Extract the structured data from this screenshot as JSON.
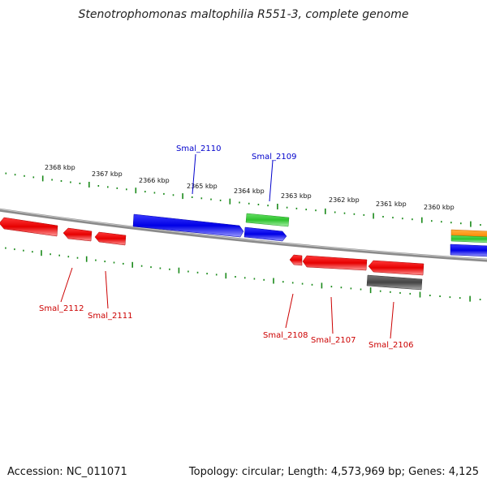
{
  "title": "Stenotrophomonas maltophilia R551-3, complete genome",
  "footer": {
    "accession": "Accession: NC_011071",
    "summary": "Topology: circular; Length: 4,573,969 bp; Genes: 4,125"
  },
  "kbp_labels": [
    "2368 kbp",
    "2367 kbp",
    "2366 kbp",
    "2365 kbp",
    "2364 kbp",
    "2363 kbp",
    "2362 kbp",
    "2361 kbp",
    "2360 kbp"
  ],
  "gene_labels": {
    "top": [
      "Smal_2110",
      "Smal_2109"
    ],
    "bottom": [
      "Smal_2112",
      "Smal_2111",
      "Smal_2108",
      "Smal_2107",
      "Smal_2106"
    ]
  },
  "colors": {
    "forward_gene": "#0000ee",
    "reverse_gene": "#ee0000",
    "rna_gene": "#33cc33",
    "pseudo_gene": "#555555",
    "other_gene": "#ff8800",
    "tick": "#1a8a1a",
    "backbone": "#888888"
  }
}
